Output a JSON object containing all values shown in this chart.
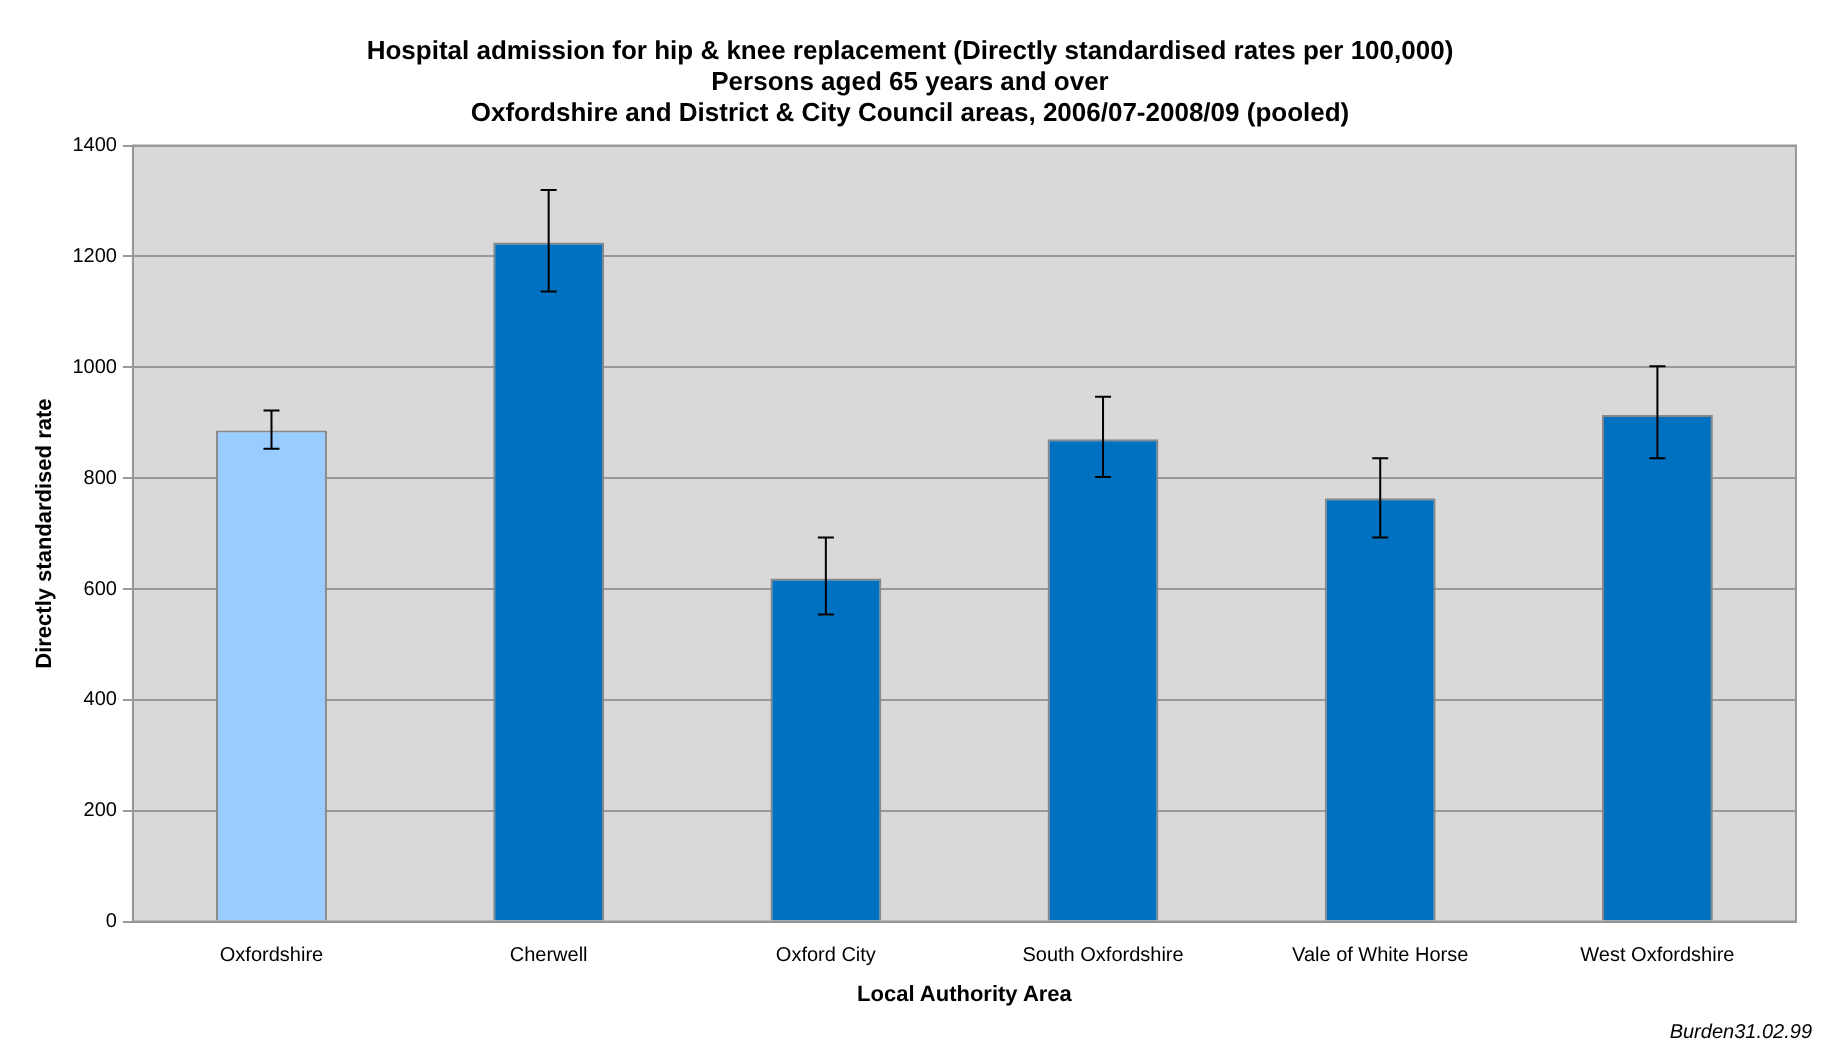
{
  "chart_data": {
    "type": "bar",
    "title": "Hospital admission for hip & knee replacement (Directly standardised rates per 100,000)",
    "subtitle": "Persons aged 65 years and over\nOxfordshire and District & City Council areas, 2006/07-2008/09 (pooled)",
    "xlabel": "Local Authority Area",
    "ylabel": "Directly standardised rate",
    "categories": [
      "Oxfordshire",
      "Cherwell",
      "Oxford City",
      "South Oxfordshire",
      "Vale of White Horse",
      "West Oxfordshire"
    ],
    "values": [
      886,
      1225,
      619,
      870,
      764,
      914
    ],
    "colors": [
      "#99ccff",
      "#0070c0",
      "#0070c0",
      "#0070c0",
      "#0070c0",
      "#0070c0"
    ],
    "errors": [
      [
        853,
        922
      ],
      [
        1137,
        1320
      ],
      [
        554,
        693
      ],
      [
        802,
        947
      ],
      [
        693,
        836
      ],
      [
        836,
        1002
      ]
    ],
    "ylim": [
      0,
      1400
    ],
    "yticks": [
      0,
      200,
      400,
      600,
      800,
      1000,
      1200,
      1400
    ],
    "grid": "y",
    "annotations": [
      "Burden31.02.99"
    ]
  }
}
